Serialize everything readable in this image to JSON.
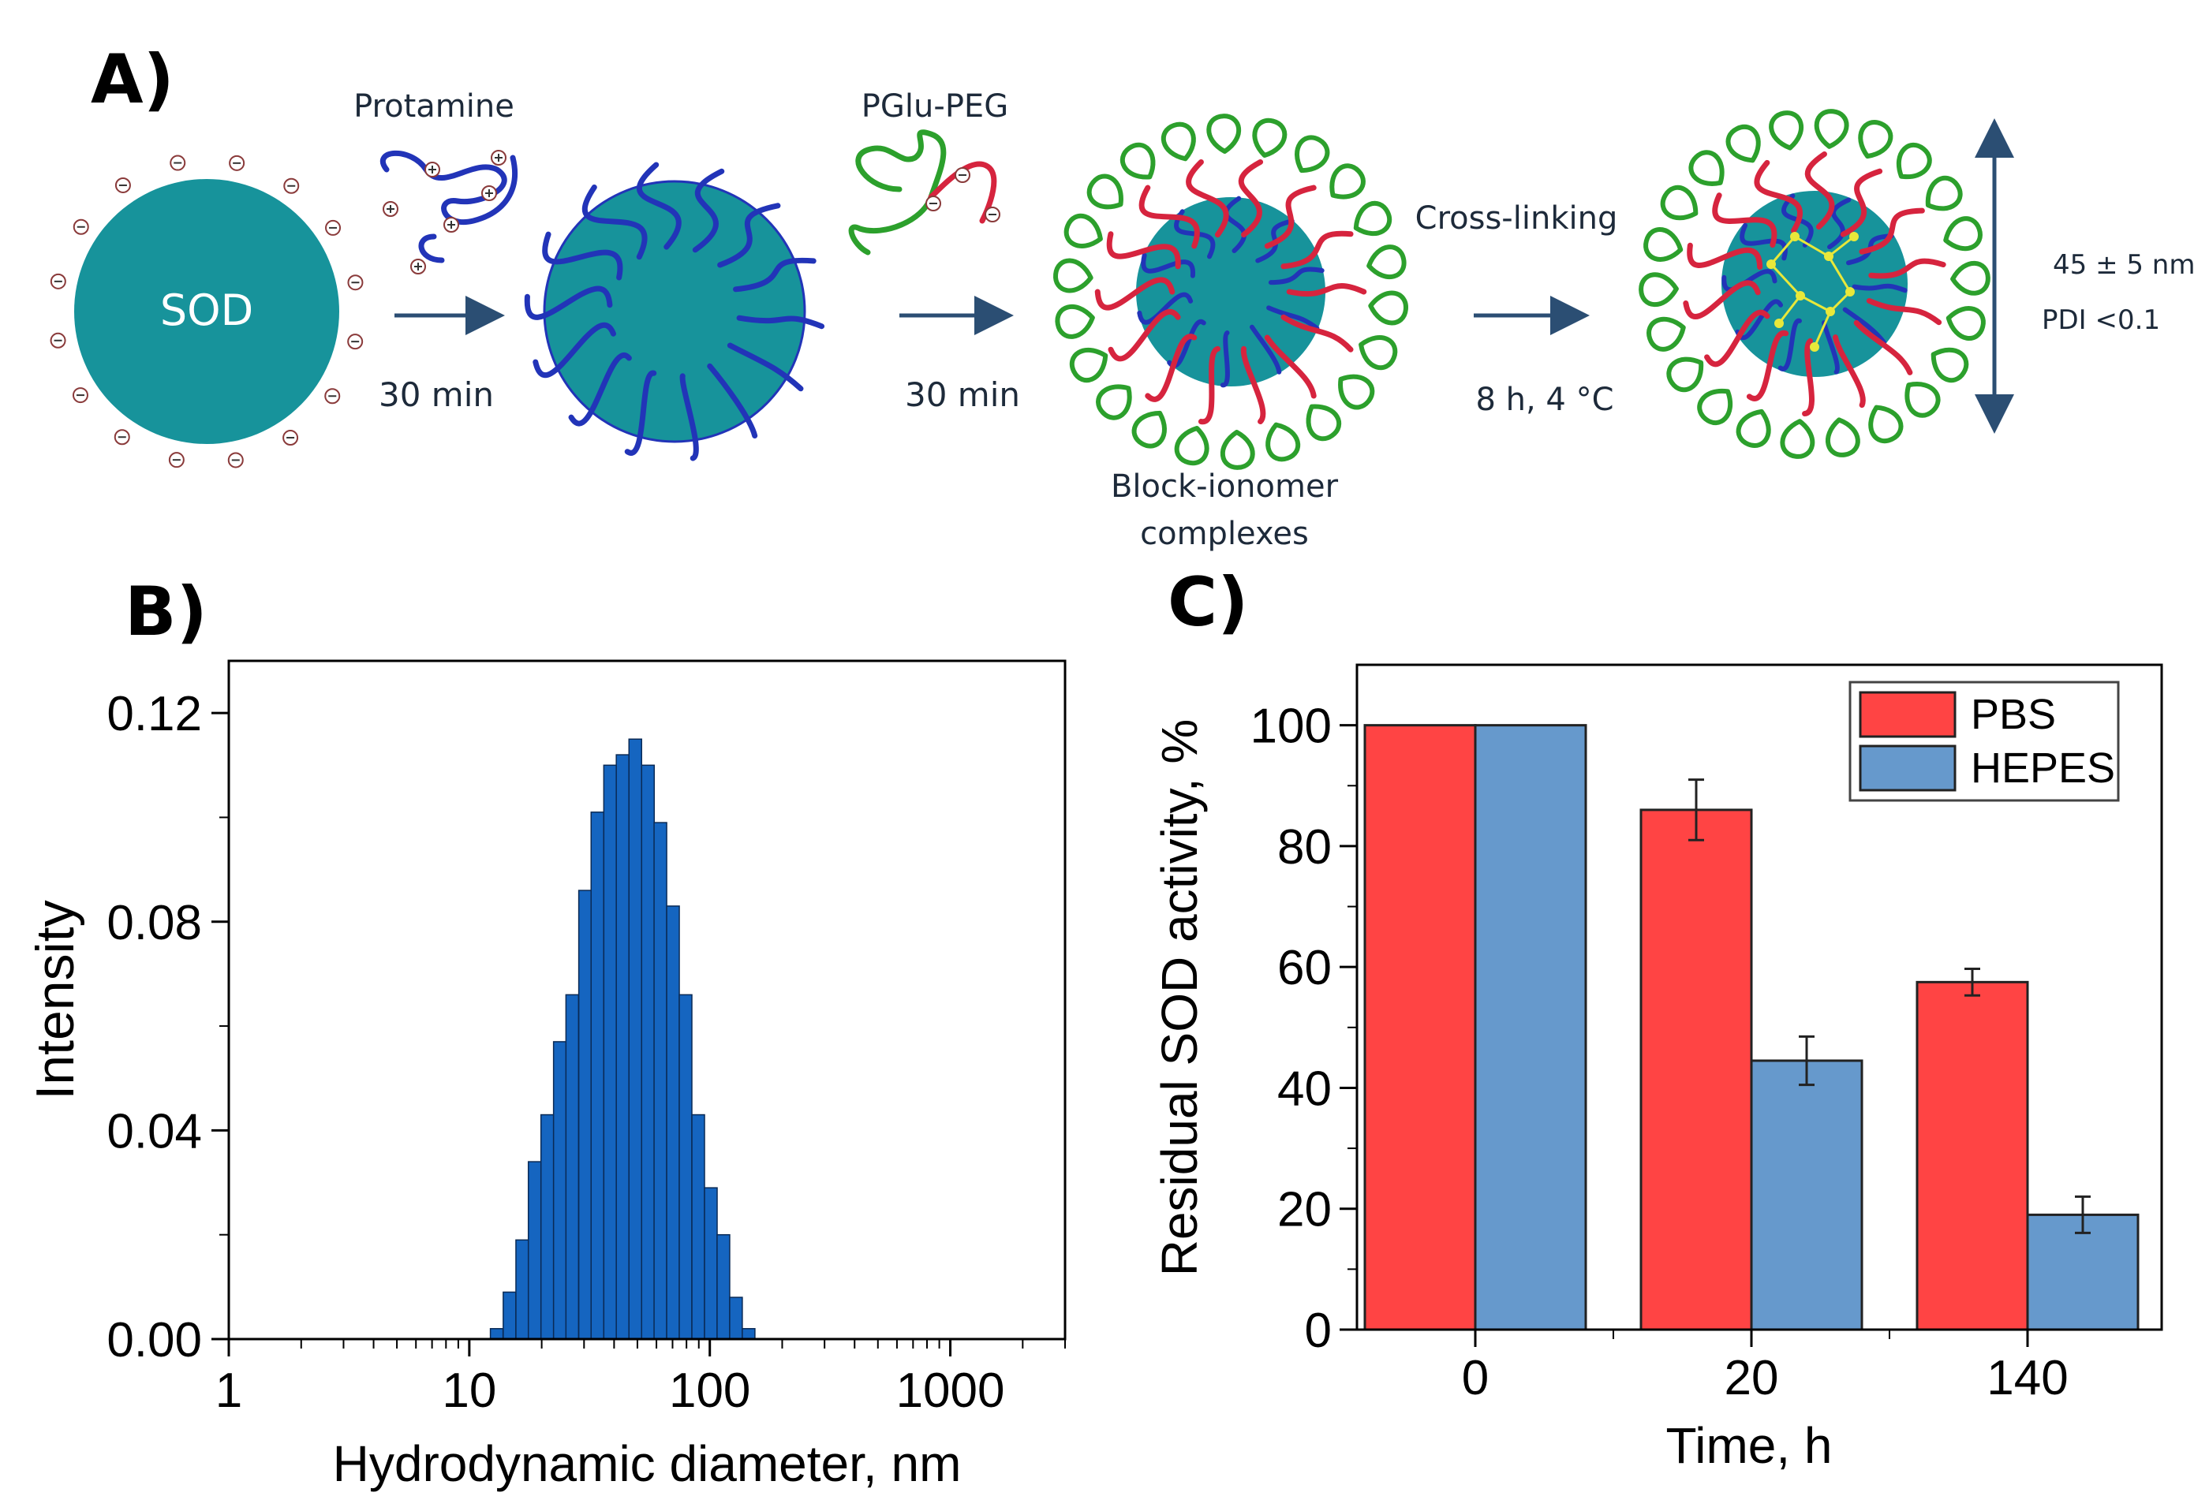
{
  "panel_a": {
    "label": "A)",
    "sod_label": "SOD",
    "protamine_label": "Protamine",
    "pglu_peg_label": "PGlu-PEG",
    "step1_time": "30 min",
    "step2_time": "30 min",
    "crosslinking_label": "Cross-linking",
    "step3_condition": "8 h, 4 °C",
    "bic_label_line1": "Block-ionomer",
    "bic_label_line2": "complexes",
    "size_label": "45 ± 5 nm",
    "pdi_label": "PDI <0.1",
    "colors": {
      "enzyme": "#17939b",
      "protamine": "#2234b8",
      "peg": "#2ca02c",
      "pglu": "#d6243e",
      "arrow": "#2b4e73",
      "crosslink": "#e8e83a"
    }
  },
  "panel_b": {
    "label": "B)",
    "chart_data": {
      "type": "bar",
      "xscale": "log",
      "xlabel": "Hydrodynamic diameter, nm",
      "ylabel": "Intensity",
      "xlim": [
        1,
        3000
      ],
      "ylim": [
        0,
        0.13
      ],
      "xticks": [
        "1",
        "10",
        "100",
        "1000"
      ],
      "yticks": [
        "0.00",
        "0.04",
        "0.08",
        "0.12"
      ],
      "bar_color": "#1565c0",
      "bins": [
        {
          "x": 13.0,
          "y": 0.002
        },
        {
          "x": 14.7,
          "y": 0.009
        },
        {
          "x": 16.6,
          "y": 0.019
        },
        {
          "x": 18.7,
          "y": 0.034
        },
        {
          "x": 21.1,
          "y": 0.043
        },
        {
          "x": 23.8,
          "y": 0.057
        },
        {
          "x": 26.8,
          "y": 0.066
        },
        {
          "x": 30.3,
          "y": 0.086
        },
        {
          "x": 34.1,
          "y": 0.101
        },
        {
          "x": 38.5,
          "y": 0.11
        },
        {
          "x": 43.4,
          "y": 0.112
        },
        {
          "x": 49.0,
          "y": 0.115
        },
        {
          "x": 55.3,
          "y": 0.11
        },
        {
          "x": 62.3,
          "y": 0.099
        },
        {
          "x": 70.3,
          "y": 0.083
        },
        {
          "x": 79.3,
          "y": 0.066
        },
        {
          "x": 89.5,
          "y": 0.043
        },
        {
          "x": 101.0,
          "y": 0.029
        },
        {
          "x": 113.9,
          "y": 0.02
        },
        {
          "x": 128.5,
          "y": 0.008
        },
        {
          "x": 145.0,
          "y": 0.002
        }
      ]
    }
  },
  "panel_c": {
    "label": "C)",
    "chart_data": {
      "type": "bar",
      "categories": [
        "0",
        "20",
        "140"
      ],
      "xlabel": "Time, h",
      "ylabel": "Residual SOD activity, %",
      "ylim": [
        0,
        110
      ],
      "yticks": [
        "0",
        "20",
        "40",
        "60",
        "80",
        "100"
      ],
      "legend_position": "top-right",
      "series": [
        {
          "name": "PBS",
          "color": "#ff4444",
          "values": [
            100,
            86,
            57.5
          ],
          "errors": [
            0,
            5,
            2.2
          ]
        },
        {
          "name": "HEPES",
          "color": "#6699cc",
          "values": [
            100,
            44.5,
            19
          ],
          "errors": [
            0,
            4,
            3
          ]
        }
      ]
    }
  }
}
